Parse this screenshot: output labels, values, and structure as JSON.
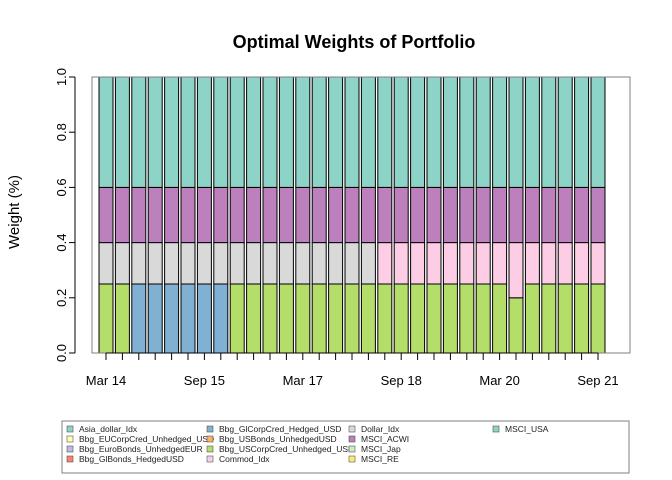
{
  "chart_data": {
    "type": "bar",
    "stacked": true,
    "title": "Optimal Weights of Portfolio",
    "xlabel": "",
    "ylabel": "Weight (%)",
    "ylim": [
      0,
      1
    ],
    "yticks": [
      "0.0",
      "0.2",
      "0.4",
      "0.6",
      "0.8",
      "1.0"
    ],
    "xtick_labels": [
      {
        "label": "Mar 14",
        "bar_index": 0
      },
      {
        "label": "Sep 15",
        "bar_index": 6
      },
      {
        "label": "Mar 17",
        "bar_index": 12
      },
      {
        "label": "Sep 18",
        "bar_index": 18
      },
      {
        "label": "Mar 20",
        "bar_index": 24
      },
      {
        "label": "Sep 21",
        "bar_index": 30
      }
    ],
    "n_bars": 31,
    "legend_position": "bottom",
    "series": [
      {
        "name": "Asia_dollar_Idx",
        "color": "#8DD3C7",
        "values": [
          0,
          0,
          0,
          0,
          0,
          0,
          0,
          0,
          0,
          0,
          0,
          0,
          0,
          0,
          0,
          0,
          0,
          0,
          0,
          0,
          0,
          0,
          0,
          0,
          0,
          0,
          0,
          0,
          0,
          0,
          0
        ]
      },
      {
        "name": "Bbg_EUCorpCred_Unhedged_USD",
        "color": "#FFFFB3",
        "values": [
          0,
          0,
          0,
          0,
          0,
          0,
          0,
          0,
          0,
          0,
          0,
          0,
          0,
          0,
          0,
          0,
          0,
          0,
          0,
          0,
          0,
          0,
          0,
          0,
          0,
          0,
          0,
          0,
          0,
          0,
          0
        ]
      },
      {
        "name": "Bbg_EuroBonds_UnhedgedEUR",
        "color": "#BEBADA",
        "values": [
          0,
          0,
          0,
          0,
          0,
          0,
          0,
          0,
          0,
          0,
          0,
          0,
          0,
          0,
          0,
          0,
          0,
          0,
          0,
          0,
          0,
          0,
          0,
          0,
          0,
          0,
          0,
          0,
          0,
          0,
          0
        ]
      },
      {
        "name": "Bbg_GlBonds_HedgedUSD",
        "color": "#FB8072",
        "values": [
          0,
          0,
          0,
          0,
          0,
          0,
          0,
          0,
          0,
          0,
          0,
          0,
          0,
          0,
          0,
          0,
          0,
          0,
          0,
          0,
          0,
          0,
          0,
          0,
          0,
          0,
          0,
          0,
          0,
          0,
          0
        ]
      },
      {
        "name": "Bbg_GlCorpCred_Hedged_USD",
        "color": "#80B1D3",
        "values": [
          0,
          0,
          0.25,
          0.25,
          0.25,
          0.25,
          0.25,
          0.25,
          0,
          0,
          0,
          0,
          0,
          0,
          0,
          0,
          0,
          0,
          0,
          0,
          0,
          0,
          0,
          0,
          0,
          0,
          0,
          0,
          0,
          0,
          0
        ]
      },
      {
        "name": "Bbg_USBonds_UnhedgedUSD",
        "color": "#FDB462",
        "values": [
          0,
          0,
          0,
          0,
          0,
          0,
          0,
          0,
          0,
          0,
          0,
          0,
          0,
          0,
          0,
          0,
          0,
          0,
          0,
          0,
          0,
          0,
          0,
          0,
          0,
          0,
          0,
          0,
          0,
          0,
          0
        ]
      },
      {
        "name": "Bbg_USCorpCred_Unhedged_USD",
        "color": "#B3DE69",
        "values": [
          0.25,
          0.25,
          0,
          0,
          0,
          0,
          0,
          0,
          0.25,
          0.25,
          0.25,
          0.25,
          0.25,
          0.25,
          0.25,
          0.25,
          0.25,
          0.25,
          0.25,
          0.25,
          0.25,
          0.25,
          0.25,
          0.25,
          0.25,
          0.2,
          0.25,
          0.25,
          0.25,
          0.25,
          0.25
        ]
      },
      {
        "name": "Commod_Idx",
        "color": "#FCCDE5",
        "values": [
          0,
          0,
          0,
          0,
          0,
          0,
          0,
          0,
          0,
          0,
          0,
          0,
          0,
          0,
          0,
          0,
          0,
          0.15,
          0.15,
          0.15,
          0.15,
          0.15,
          0.15,
          0.15,
          0.15,
          0.2,
          0.15,
          0.15,
          0.15,
          0.15,
          0.15
        ]
      },
      {
        "name": "Dollar_Idx",
        "color": "#D9D9D9",
        "values": [
          0.15,
          0.15,
          0.15,
          0.15,
          0.15,
          0.15,
          0.15,
          0.15,
          0.15,
          0.15,
          0.15,
          0.15,
          0.15,
          0.15,
          0.15,
          0.15,
          0.15,
          0,
          0,
          0,
          0,
          0,
          0,
          0,
          0,
          0,
          0,
          0,
          0,
          0,
          0
        ]
      },
      {
        "name": "MSCI_ACWI",
        "color": "#BC80BD",
        "values": [
          0.2,
          0.2,
          0.2,
          0.2,
          0.2,
          0.2,
          0.2,
          0.2,
          0.2,
          0.2,
          0.2,
          0.2,
          0.2,
          0.2,
          0.2,
          0.2,
          0.2,
          0.2,
          0.2,
          0.2,
          0.2,
          0.2,
          0.2,
          0.2,
          0.2,
          0.2,
          0.2,
          0.2,
          0.2,
          0.2,
          0.2
        ]
      },
      {
        "name": "MSCI_Jap",
        "color": "#CCEBC5",
        "values": [
          0,
          0,
          0,
          0,
          0,
          0,
          0,
          0,
          0,
          0,
          0,
          0,
          0,
          0,
          0,
          0,
          0,
          0,
          0,
          0,
          0,
          0,
          0,
          0,
          0,
          0,
          0,
          0,
          0,
          0,
          0
        ]
      },
      {
        "name": "MSCI_RE",
        "color": "#FFED6F",
        "values": [
          0,
          0,
          0,
          0,
          0,
          0,
          0,
          0,
          0,
          0,
          0,
          0,
          0,
          0,
          0,
          0,
          0,
          0,
          0,
          0,
          0,
          0,
          0,
          0,
          0,
          0,
          0,
          0,
          0,
          0,
          0
        ]
      },
      {
        "name": "MSCI_USA",
        "color": "#8DD3C7",
        "values": [
          0.4,
          0.4,
          0.4,
          0.4,
          0.4,
          0.4,
          0.4,
          0.4,
          0.4,
          0.4,
          0.4,
          0.4,
          0.4,
          0.4,
          0.4,
          0.4,
          0.4,
          0.4,
          0.4,
          0.4,
          0.4,
          0.4,
          0.4,
          0.4,
          0.4,
          0.4,
          0.4,
          0.4,
          0.4,
          0.4,
          0.4
        ]
      }
    ]
  }
}
